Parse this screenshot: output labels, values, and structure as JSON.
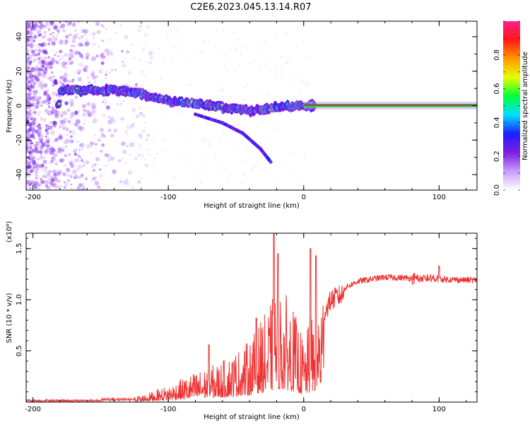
{
  "title": "C2E6.2023.045.13.14.R07",
  "chart_data": [
    {
      "type": "heatmap",
      "xlabel": "Height of straight line (km)",
      "ylabel": "Frequency (Hz)",
      "xlim": [
        -205,
        128
      ],
      "ylim": [
        -49,
        49
      ],
      "xticks": [
        -200,
        -100,
        0,
        100
      ],
      "yticks": [
        -40,
        -20,
        0,
        20,
        40
      ],
      "colorbar": {
        "label": "Normalized spectral amplitude",
        "range": [
          0,
          1
        ],
        "ticks": [
          0.0,
          0.2,
          0.4,
          0.6,
          0.8
        ],
        "colors": [
          "#ffffff",
          "#c89bff",
          "#7a1fe0",
          "#1d1dff",
          "#00dfff",
          "#00ff3a",
          "#e6ff00",
          "#ff9900",
          "#ff1a1a",
          "#ff1f8a"
        ]
      },
      "ridge": [
        {
          "x": -180,
          "f": 9
        },
        {
          "x": -160,
          "f": 9
        },
        {
          "x": -140,
          "f": 9
        },
        {
          "x": -120,
          "f": 7
        },
        {
          "x": -100,
          "f": 3
        },
        {
          "x": -80,
          "f": 1
        },
        {
          "x": -60,
          "f": -1
        },
        {
          "x": -40,
          "f": -3
        },
        {
          "x": -20,
          "f": -1
        },
        {
          "x": 0,
          "f": 0
        },
        {
          "x": 20,
          "f": 0
        },
        {
          "x": 128,
          "f": 0
        }
      ],
      "branch": [
        {
          "x": -80,
          "f": -5
        },
        {
          "x": -60,
          "f": -10
        },
        {
          "x": -45,
          "f": -16
        },
        {
          "x": -32,
          "f": -25
        },
        {
          "x": -24,
          "f": -33
        }
      ]
    },
    {
      "type": "line",
      "xlabel": "Height of straight line (km)",
      "ylabel": "SNR (10 * v/v)",
      "yscale_label": "(x10⁴)",
      "xlim": [
        -205,
        128
      ],
      "ylim": [
        0,
        1.65
      ],
      "xticks": [
        -200,
        -100,
        0,
        100
      ],
      "yticks": [
        0.5,
        1.0,
        1.5
      ],
      "color": "#ee3333",
      "envelope": [
        {
          "x": -205,
          "y": 0.0
        },
        {
          "x": -150,
          "y": 0.01
        },
        {
          "x": -120,
          "y": 0.05
        },
        {
          "x": -100,
          "y": 0.12
        },
        {
          "x": -80,
          "y": 0.22
        },
        {
          "x": -60,
          "y": 0.3
        },
        {
          "x": -40,
          "y": 0.45
        },
        {
          "x": -25,
          "y": 0.7
        },
        {
          "x": -20,
          "y": 0.85
        },
        {
          "x": -10,
          "y": 0.75
        },
        {
          "x": 0,
          "y": 0.45
        },
        {
          "x": 10,
          "y": 0.75
        },
        {
          "x": 20,
          "y": 1.05
        },
        {
          "x": 40,
          "y": 1.18
        },
        {
          "x": 60,
          "y": 1.22
        },
        {
          "x": 80,
          "y": 1.21
        },
        {
          "x": 100,
          "y": 1.2
        },
        {
          "x": 128,
          "y": 1.19
        }
      ],
      "peaks": [
        {
          "x": -22,
          "y": 1.65
        },
        {
          "x": -19,
          "y": 1.45
        },
        {
          "x": 5,
          "y": 1.5
        },
        {
          "x": 9,
          "y": 1.43
        },
        {
          "x": -70,
          "y": 0.56
        },
        {
          "x": -35,
          "y": 0.82
        },
        {
          "x": 100,
          "y": 1.33
        }
      ]
    }
  ]
}
